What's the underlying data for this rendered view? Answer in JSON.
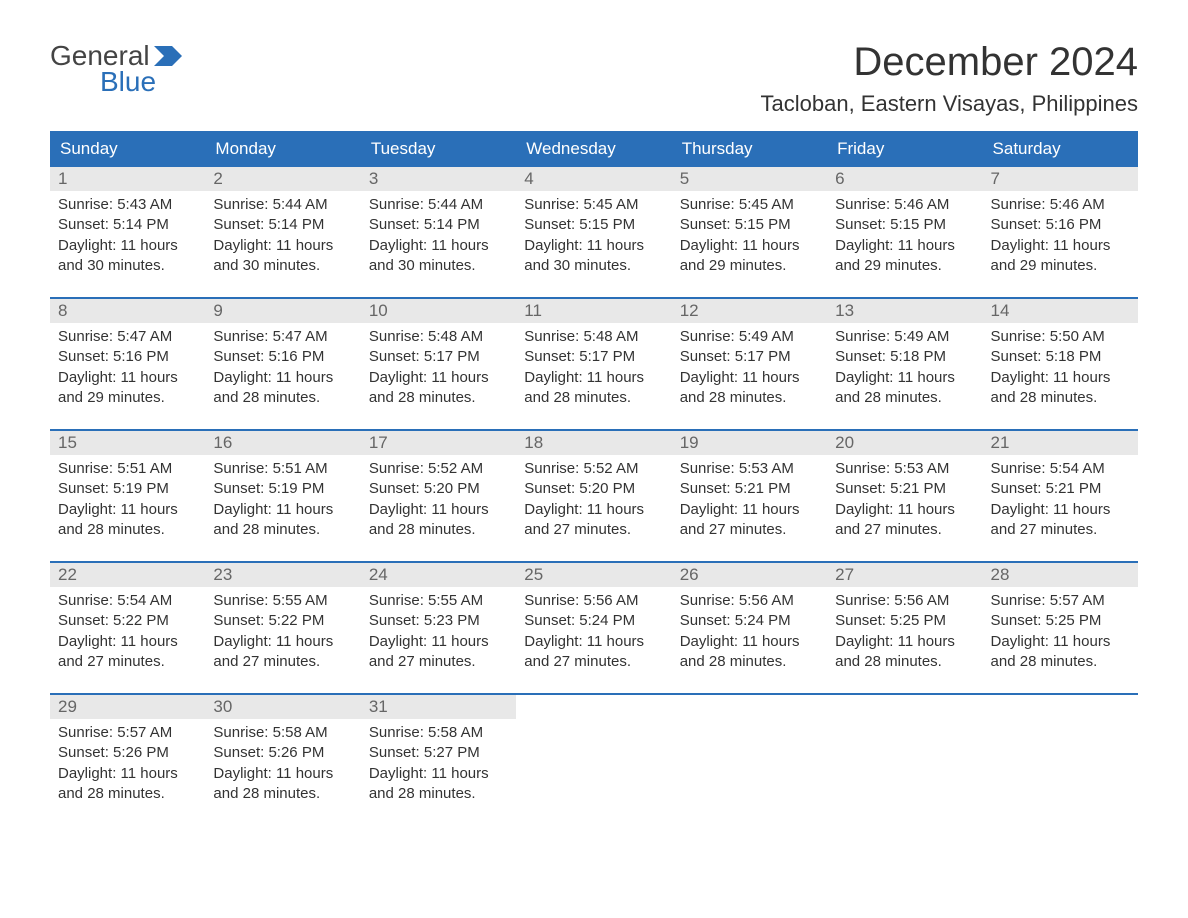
{
  "logo": {
    "general": "General",
    "blue": "Blue",
    "flag_color": "#2a6fb8"
  },
  "title": "December 2024",
  "location": "Tacloban, Eastern Visayas, Philippines",
  "colors": {
    "header_bg": "#2a6fb8",
    "header_text": "#ffffff",
    "day_number_bg": "#e8e8e8",
    "day_number_text": "#666666",
    "body_text": "#333333",
    "border": "#2a6fb8",
    "background": "#ffffff"
  },
  "weekdays": [
    "Sunday",
    "Monday",
    "Tuesday",
    "Wednesday",
    "Thursday",
    "Friday",
    "Saturday"
  ],
  "weeks": [
    [
      {
        "num": "1",
        "sunrise": "Sunrise: 5:43 AM",
        "sunset": "Sunset: 5:14 PM",
        "daylight1": "Daylight: 11 hours",
        "daylight2": "and 30 minutes."
      },
      {
        "num": "2",
        "sunrise": "Sunrise: 5:44 AM",
        "sunset": "Sunset: 5:14 PM",
        "daylight1": "Daylight: 11 hours",
        "daylight2": "and 30 minutes."
      },
      {
        "num": "3",
        "sunrise": "Sunrise: 5:44 AM",
        "sunset": "Sunset: 5:14 PM",
        "daylight1": "Daylight: 11 hours",
        "daylight2": "and 30 minutes."
      },
      {
        "num": "4",
        "sunrise": "Sunrise: 5:45 AM",
        "sunset": "Sunset: 5:15 PM",
        "daylight1": "Daylight: 11 hours",
        "daylight2": "and 30 minutes."
      },
      {
        "num": "5",
        "sunrise": "Sunrise: 5:45 AM",
        "sunset": "Sunset: 5:15 PM",
        "daylight1": "Daylight: 11 hours",
        "daylight2": "and 29 minutes."
      },
      {
        "num": "6",
        "sunrise": "Sunrise: 5:46 AM",
        "sunset": "Sunset: 5:15 PM",
        "daylight1": "Daylight: 11 hours",
        "daylight2": "and 29 minutes."
      },
      {
        "num": "7",
        "sunrise": "Sunrise: 5:46 AM",
        "sunset": "Sunset: 5:16 PM",
        "daylight1": "Daylight: 11 hours",
        "daylight2": "and 29 minutes."
      }
    ],
    [
      {
        "num": "8",
        "sunrise": "Sunrise: 5:47 AM",
        "sunset": "Sunset: 5:16 PM",
        "daylight1": "Daylight: 11 hours",
        "daylight2": "and 29 minutes."
      },
      {
        "num": "9",
        "sunrise": "Sunrise: 5:47 AM",
        "sunset": "Sunset: 5:16 PM",
        "daylight1": "Daylight: 11 hours",
        "daylight2": "and 28 minutes."
      },
      {
        "num": "10",
        "sunrise": "Sunrise: 5:48 AM",
        "sunset": "Sunset: 5:17 PM",
        "daylight1": "Daylight: 11 hours",
        "daylight2": "and 28 minutes."
      },
      {
        "num": "11",
        "sunrise": "Sunrise: 5:48 AM",
        "sunset": "Sunset: 5:17 PM",
        "daylight1": "Daylight: 11 hours",
        "daylight2": "and 28 minutes."
      },
      {
        "num": "12",
        "sunrise": "Sunrise: 5:49 AM",
        "sunset": "Sunset: 5:17 PM",
        "daylight1": "Daylight: 11 hours",
        "daylight2": "and 28 minutes."
      },
      {
        "num": "13",
        "sunrise": "Sunrise: 5:49 AM",
        "sunset": "Sunset: 5:18 PM",
        "daylight1": "Daylight: 11 hours",
        "daylight2": "and 28 minutes."
      },
      {
        "num": "14",
        "sunrise": "Sunrise: 5:50 AM",
        "sunset": "Sunset: 5:18 PM",
        "daylight1": "Daylight: 11 hours",
        "daylight2": "and 28 minutes."
      }
    ],
    [
      {
        "num": "15",
        "sunrise": "Sunrise: 5:51 AM",
        "sunset": "Sunset: 5:19 PM",
        "daylight1": "Daylight: 11 hours",
        "daylight2": "and 28 minutes."
      },
      {
        "num": "16",
        "sunrise": "Sunrise: 5:51 AM",
        "sunset": "Sunset: 5:19 PM",
        "daylight1": "Daylight: 11 hours",
        "daylight2": "and 28 minutes."
      },
      {
        "num": "17",
        "sunrise": "Sunrise: 5:52 AM",
        "sunset": "Sunset: 5:20 PM",
        "daylight1": "Daylight: 11 hours",
        "daylight2": "and 28 minutes."
      },
      {
        "num": "18",
        "sunrise": "Sunrise: 5:52 AM",
        "sunset": "Sunset: 5:20 PM",
        "daylight1": "Daylight: 11 hours",
        "daylight2": "and 27 minutes."
      },
      {
        "num": "19",
        "sunrise": "Sunrise: 5:53 AM",
        "sunset": "Sunset: 5:21 PM",
        "daylight1": "Daylight: 11 hours",
        "daylight2": "and 27 minutes."
      },
      {
        "num": "20",
        "sunrise": "Sunrise: 5:53 AM",
        "sunset": "Sunset: 5:21 PM",
        "daylight1": "Daylight: 11 hours",
        "daylight2": "and 27 minutes."
      },
      {
        "num": "21",
        "sunrise": "Sunrise: 5:54 AM",
        "sunset": "Sunset: 5:21 PM",
        "daylight1": "Daylight: 11 hours",
        "daylight2": "and 27 minutes."
      }
    ],
    [
      {
        "num": "22",
        "sunrise": "Sunrise: 5:54 AM",
        "sunset": "Sunset: 5:22 PM",
        "daylight1": "Daylight: 11 hours",
        "daylight2": "and 27 minutes."
      },
      {
        "num": "23",
        "sunrise": "Sunrise: 5:55 AM",
        "sunset": "Sunset: 5:22 PM",
        "daylight1": "Daylight: 11 hours",
        "daylight2": "and 27 minutes."
      },
      {
        "num": "24",
        "sunrise": "Sunrise: 5:55 AM",
        "sunset": "Sunset: 5:23 PM",
        "daylight1": "Daylight: 11 hours",
        "daylight2": "and 27 minutes."
      },
      {
        "num": "25",
        "sunrise": "Sunrise: 5:56 AM",
        "sunset": "Sunset: 5:24 PM",
        "daylight1": "Daylight: 11 hours",
        "daylight2": "and 27 minutes."
      },
      {
        "num": "26",
        "sunrise": "Sunrise: 5:56 AM",
        "sunset": "Sunset: 5:24 PM",
        "daylight1": "Daylight: 11 hours",
        "daylight2": "and 28 minutes."
      },
      {
        "num": "27",
        "sunrise": "Sunrise: 5:56 AM",
        "sunset": "Sunset: 5:25 PM",
        "daylight1": "Daylight: 11 hours",
        "daylight2": "and 28 minutes."
      },
      {
        "num": "28",
        "sunrise": "Sunrise: 5:57 AM",
        "sunset": "Sunset: 5:25 PM",
        "daylight1": "Daylight: 11 hours",
        "daylight2": "and 28 minutes."
      }
    ],
    [
      {
        "num": "29",
        "sunrise": "Sunrise: 5:57 AM",
        "sunset": "Sunset: 5:26 PM",
        "daylight1": "Daylight: 11 hours",
        "daylight2": "and 28 minutes."
      },
      {
        "num": "30",
        "sunrise": "Sunrise: 5:58 AM",
        "sunset": "Sunset: 5:26 PM",
        "daylight1": "Daylight: 11 hours",
        "daylight2": "and 28 minutes."
      },
      {
        "num": "31",
        "sunrise": "Sunrise: 5:58 AM",
        "sunset": "Sunset: 5:27 PM",
        "daylight1": "Daylight: 11 hours",
        "daylight2": "and 28 minutes."
      },
      {
        "empty": true
      },
      {
        "empty": true
      },
      {
        "empty": true
      },
      {
        "empty": true
      }
    ]
  ]
}
